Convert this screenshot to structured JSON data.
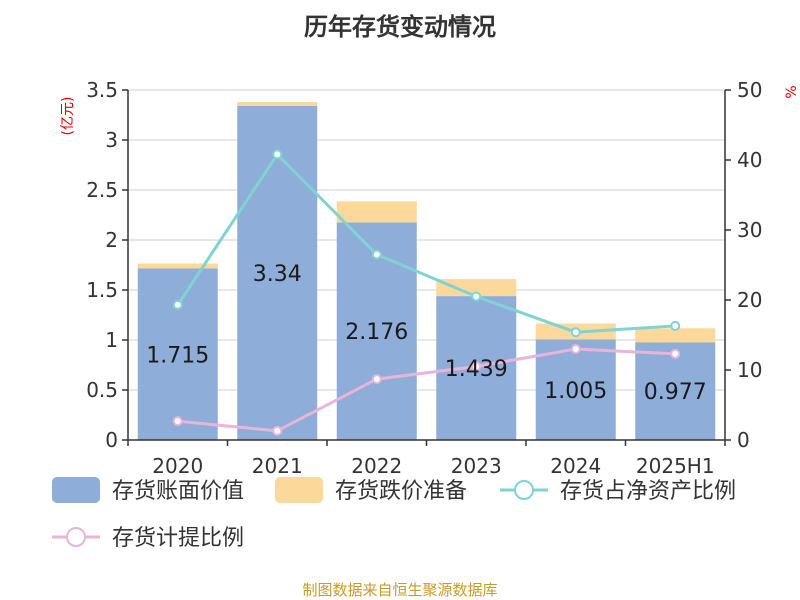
{
  "chart_data": {
    "type": "bar",
    "title": "历年存货变动情况",
    "left_unit": "(亿元)",
    "right_unit": "%",
    "categories": [
      "2020",
      "2021",
      "2022",
      "2023",
      "2024",
      "2025H1"
    ],
    "y_left": {
      "min": 0,
      "max": 3.5,
      "ticks": [
        "0",
        "0.5",
        "1",
        "1.5",
        "2",
        "2.5",
        "3",
        "3.5"
      ]
    },
    "y_right": {
      "min": 0,
      "max": 50,
      "ticks": [
        "0",
        "10",
        "20",
        "30",
        "40",
        "50"
      ]
    },
    "grid": true,
    "legend_position": "bottom",
    "series": [
      {
        "name": "存货账面价值",
        "kind": "bar",
        "axis": "left",
        "color": "#8fadd9",
        "values": [
          1.715,
          3.34,
          2.176,
          1.439,
          1.005,
          0.977
        ],
        "labels": [
          "1.715",
          "3.34",
          "2.176",
          "1.439",
          "1.005",
          "0.977"
        ]
      },
      {
        "name": "存货跌价准备",
        "kind": "bar",
        "axis": "left",
        "color": "#fcd89a",
        "values": [
          0.05,
          0.04,
          0.21,
          0.17,
          0.16,
          0.14
        ]
      },
      {
        "name": "存货占净资产比例",
        "kind": "line",
        "axis": "right",
        "color": "#7fd3d3",
        "values": [
          19.3,
          40.8,
          26.5,
          20.5,
          15.4,
          16.3
        ]
      },
      {
        "name": "存货计提比例",
        "kind": "line",
        "axis": "right",
        "color": "#e8b4d8",
        "values": [
          2.7,
          1.3,
          8.7,
          10.5,
          13.0,
          12.3
        ]
      }
    ],
    "source": "制图数据来自恒生聚源数据库"
  }
}
